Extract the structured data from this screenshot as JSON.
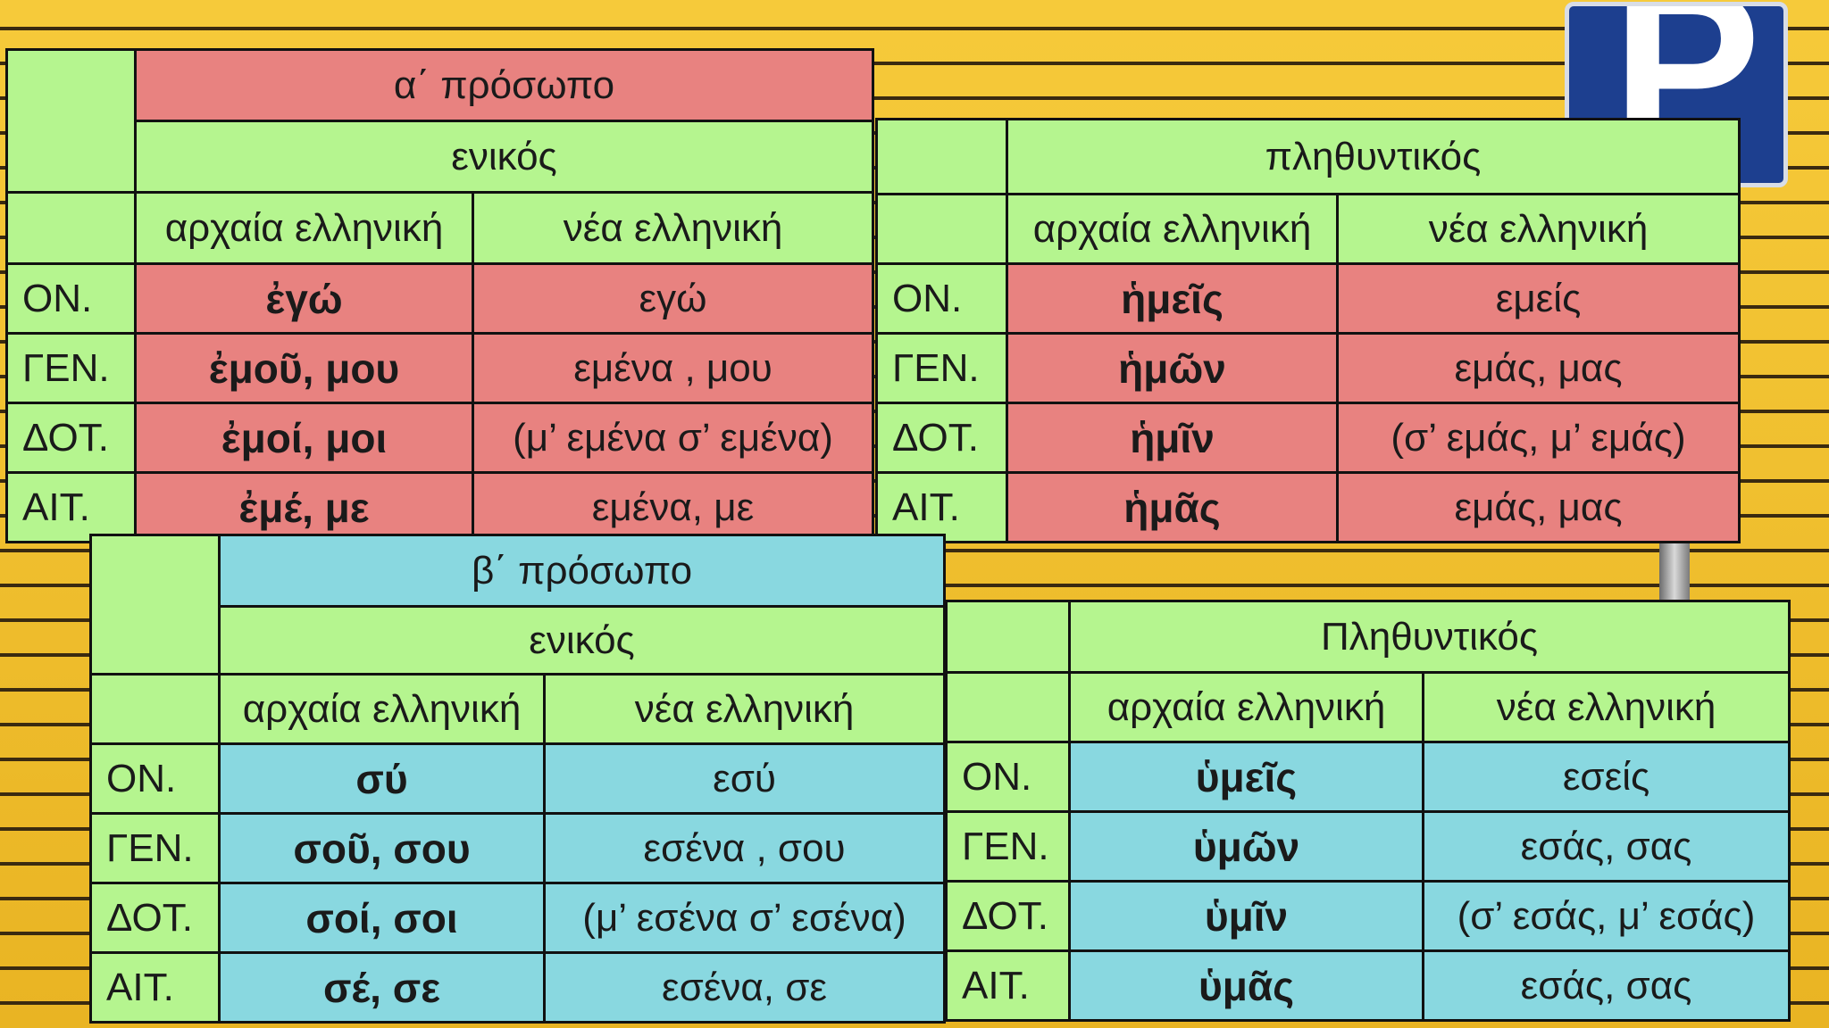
{
  "first_person": {
    "title": "α΄ πρόσωπο",
    "singular": {
      "number_label": "ενικός",
      "col_ancient": "αρχαία ελληνική",
      "col_modern": "νέα ελληνική",
      "rows": [
        {
          "case": "ΟΝ.",
          "ancient": "ἐγώ",
          "modern": "εγώ"
        },
        {
          "case": "ΓΕΝ.",
          "ancient": "ἐμοῦ,  μου",
          "modern": "εμένα , μου"
        },
        {
          "case": "ΔΟΤ.",
          "ancient": "ἐμοί,  μοι",
          "modern": "(μ’ εμένα  σ’ εμένα)"
        },
        {
          "case": "ΑΙΤ.",
          "ancient": "ἐμέ,  με",
          "modern": "εμένα, με"
        }
      ]
    },
    "plural": {
      "number_label": "πληθυντικός",
      "col_ancient": "αρχαία ελληνική",
      "col_modern": "νέα ελληνική",
      "rows": [
        {
          "case": "ΟΝ.",
          "ancient": "ἡμεῖς",
          "modern": "εμείς"
        },
        {
          "case": "ΓΕΝ.",
          "ancient": "ἡμῶν",
          "modern": "εμάς, μας"
        },
        {
          "case": "ΔΟΤ.",
          "ancient": "ἡμῖν",
          "modern": "(σ’ εμάς,  μ’ εμάς)"
        },
        {
          "case": "ΑΙΤ.",
          "ancient": "ἡμᾶς",
          "modern": "εμάς, μας"
        }
      ]
    }
  },
  "second_person": {
    "title": "β΄ πρόσωπο",
    "singular": {
      "number_label": "ενικός",
      "col_ancient": "αρχαία ελληνική",
      "col_modern": "νέα ελληνική",
      "rows": [
        {
          "case": "ΟΝ.",
          "ancient": "σύ",
          "modern": "εσύ"
        },
        {
          "case": "ΓΕΝ.",
          "ancient": "σοῦ,  σου",
          "modern": "εσένα , σου"
        },
        {
          "case": "ΔΟΤ.",
          "ancient": "σοί,  σοι",
          "modern": "(μ’ εσένα  σ’ εσένα)"
        },
        {
          "case": "ΑΙΤ.",
          "ancient": "σέ,  σε",
          "modern": "εσένα, σε"
        }
      ]
    },
    "plural": {
      "number_label": "Πληθυντικός",
      "col_ancient": "αρχαία ελληνική",
      "col_modern": "νέα ελληνική",
      "rows": [
        {
          "case": "ΟΝ.",
          "ancient": "ὑμεῖς",
          "modern": "εσείς"
        },
        {
          "case": "ΓΕΝ.",
          "ancient": "ὑμῶν",
          "modern": "εσάς, σας"
        },
        {
          "case": "ΔΟΤ.",
          "ancient": "ὑμῖν",
          "modern": "(σ’ εσάς,  μ’ εσάς)"
        },
        {
          "case": "ΑΙΤ.",
          "ancient": "ὑμᾶς",
          "modern": "εσάς, σας"
        }
      ]
    }
  },
  "background": {
    "sign_letter": "P",
    "sign_color": "#1d3f8f",
    "wall_color": "#f2c230"
  },
  "colors": {
    "header_green": "#b5f58f",
    "first_person_red": "#e88280",
    "second_person_blue": "#89d8e0"
  }
}
